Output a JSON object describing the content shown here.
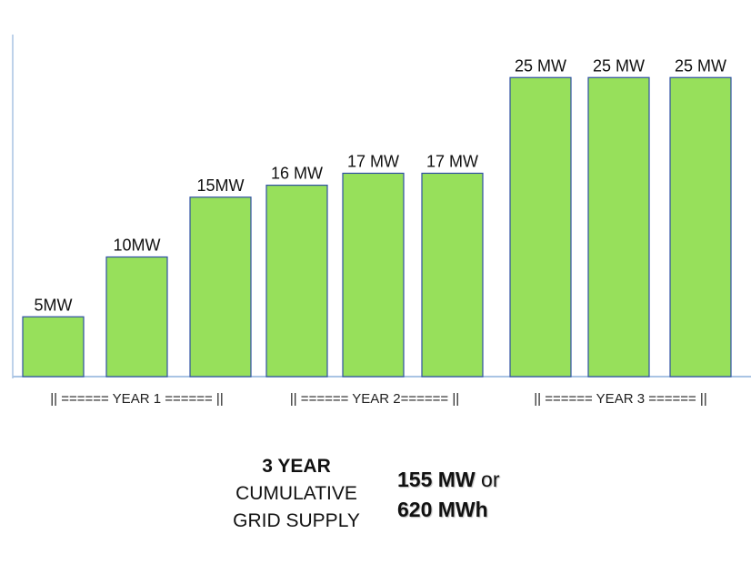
{
  "chart_data": {
    "type": "bar",
    "values": [
      5,
      10,
      15,
      16,
      17,
      17,
      25,
      25,
      25
    ],
    "data_labels": [
      "5MW",
      "10MW",
      "15MW",
      "16 MW",
      "17 MW",
      "17 MW",
      "25 MW",
      "25 MW",
      "25 MW"
    ],
    "groups": [
      {
        "label": "|| ====== YEAR 1 ====== ||",
        "bars": [
          0,
          1,
          2
        ]
      },
      {
        "label": "|| ====== YEAR 2====== ||",
        "bars": [
          3,
          4,
          5
        ]
      },
      {
        "label": "|| ====== YEAR 3 ====== ||",
        "bars": [
          6,
          7,
          8
        ]
      }
    ],
    "ylim": [
      0,
      30
    ],
    "grid": false,
    "colors": {
      "bar_fill": "#97e05b",
      "bar_stroke": "#2e4fa3",
      "axis": "#a9c4e4"
    }
  },
  "summary": {
    "heading": "3 YEAR",
    "line2": "CUMULATIVE",
    "line3": "GRID SUPPLY",
    "total_mw_value": "155 MW",
    "connector": " or",
    "total_mwh": "620 MWh"
  }
}
